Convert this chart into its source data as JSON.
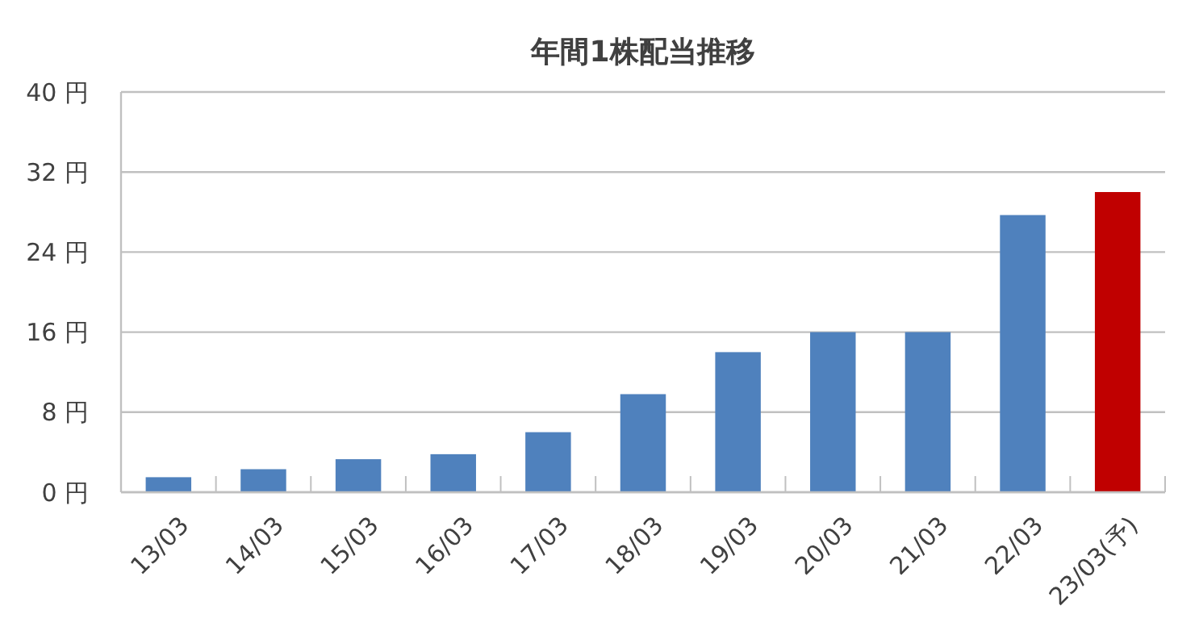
{
  "chart_data": {
    "type": "bar",
    "title": "年間1株配当推移",
    "categories": [
      "13/03",
      "14/03",
      "15/03",
      "16/03",
      "17/03",
      "18/03",
      "19/03",
      "20/03",
      "21/03",
      "22/03",
      "23/03(予)"
    ],
    "values": [
      1.5,
      2.3,
      3.3,
      3.8,
      6,
      9.8,
      14,
      16,
      16,
      27.7,
      30
    ],
    "colors": [
      "#4f81bd",
      "#4f81bd",
      "#4f81bd",
      "#4f81bd",
      "#4f81bd",
      "#4f81bd",
      "#4f81bd",
      "#4f81bd",
      "#4f81bd",
      "#4f81bd",
      "#c00000"
    ],
    "ylim": [
      0,
      40
    ],
    "yticks": [
      {
        "value": 0,
        "label": "0 円"
      },
      {
        "value": 8,
        "label": "8 円"
      },
      {
        "value": 16,
        "label": "16 円"
      },
      {
        "value": 24,
        "label": "24 円"
      },
      {
        "value": 32,
        "label": "32 円"
      },
      {
        "value": 40,
        "label": "40 円"
      }
    ],
    "grid": "y"
  }
}
